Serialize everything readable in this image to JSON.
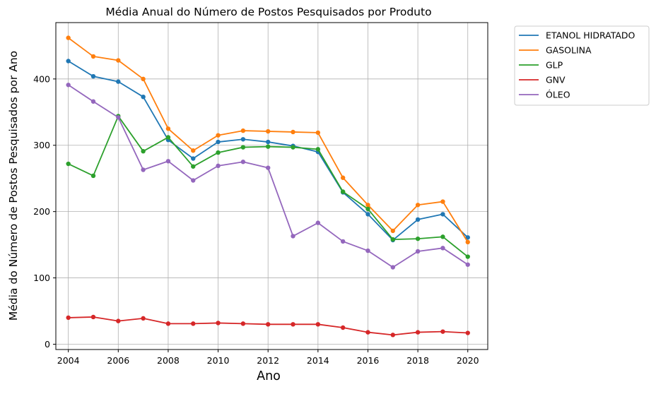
{
  "chart_data": {
    "type": "line",
    "title": "Média Anual do Número de Postos Pesquisados por Produto",
    "xlabel": "Ano",
    "ylabel": "Média do Número de Postos Pesquisados por Ano",
    "x": [
      2004,
      2005,
      2006,
      2007,
      2008,
      2009,
      2010,
      2011,
      2012,
      2013,
      2014,
      2015,
      2016,
      2017,
      2018,
      2019,
      2020
    ],
    "xticks": [
      "2004",
      "2006",
      "2008",
      "2010",
      "2012",
      "2014",
      "2016",
      "2018",
      "2020"
    ],
    "yticks": [
      "0",
      "100",
      "200",
      "300",
      "400"
    ],
    "xlim": [
      2003.5,
      2020.8
    ],
    "ylim": [
      -8,
      485
    ],
    "grid": true,
    "legend_position": "outside top-right",
    "series": [
      {
        "name": "ETANOL HIDRATADO",
        "color": "#1f77b4",
        "values": [
          427,
          404,
          396,
          373,
          308,
          280,
          305,
          309,
          305,
          299,
          290,
          229,
          196,
          157,
          188,
          196,
          161
        ]
      },
      {
        "name": "GASOLINA",
        "color": "#ff7f0e",
        "values": [
          462,
          434,
          428,
          400,
          325,
          292,
          315,
          322,
          321,
          320,
          319,
          251,
          210,
          171,
          210,
          215,
          154
        ]
      },
      {
        "name": "GLP",
        "color": "#2ca02c",
        "values": [
          272,
          254,
          344,
          291,
          312,
          268,
          289,
          297,
          298,
          297,
          294,
          230,
          204,
          158,
          159,
          162,
          132
        ]
      },
      {
        "name": "GNV",
        "color": "#d62728",
        "values": [
          40,
          41,
          35,
          39,
          31,
          31,
          32,
          31,
          30,
          30,
          30,
          25,
          18,
          14,
          18,
          19,
          17
        ]
      },
      {
        "name": "ÓLEO",
        "color": "#9467bd",
        "values": [
          391,
          366,
          342,
          263,
          276,
          247,
          269,
          275,
          266,
          163,
          183,
          155,
          141,
          116,
          140,
          145,
          120
        ]
      }
    ]
  }
}
